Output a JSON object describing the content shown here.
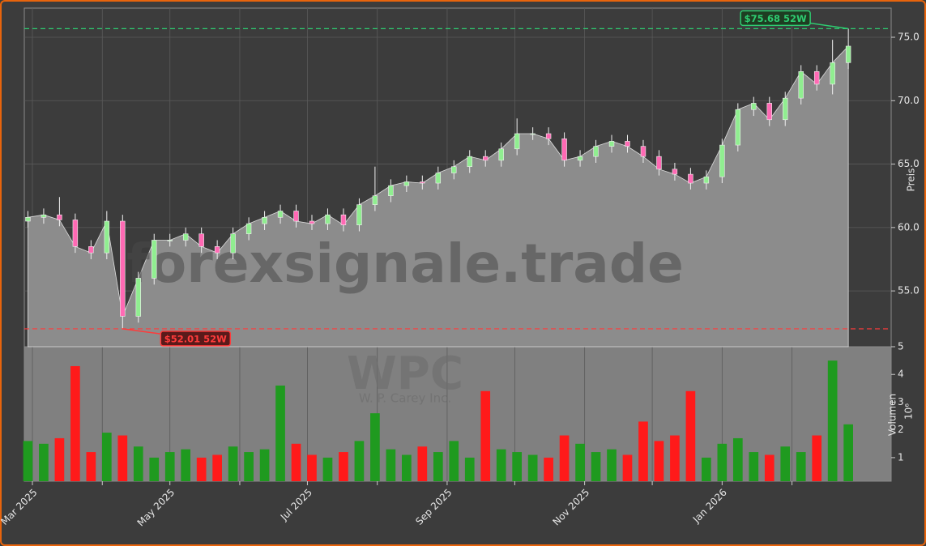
{
  "chart_data": {
    "type": "candlestick",
    "ylabel": "Preis",
    "watermark": "forexsignale.trade",
    "symbol": "WPC",
    "company": "W. P. Carey Inc.",
    "xlim": [
      -3.6,
      381
    ],
    "xticks": [
      {
        "value": 0,
        "label": "Mar 2025"
      },
      {
        "value": 61,
        "label": "May 2025"
      },
      {
        "value": 122,
        "label": "Jul 2025"
      },
      {
        "value": 184,
        "label": "Sep 2025"
      },
      {
        "value": 245,
        "label": "Nov 2025"
      },
      {
        "value": 306,
        "label": "Jan 2026"
      }
    ],
    "xminorticks": [
      31,
      92,
      153,
      214,
      275,
      337
    ],
    "ylim": [
      50.6,
      77.3
    ],
    "yticks": [
      {
        "value": 55,
        "label": "55.0"
      },
      {
        "value": 60,
        "label": "60.0"
      },
      {
        "value": 65,
        "label": "65.0"
      },
      {
        "value": 70,
        "label": "70.0"
      },
      {
        "value": 75,
        "label": "75.0"
      }
    ],
    "grid": true,
    "up_color": "#90ee90",
    "down_color": "#ff69b4",
    "area_color": "#8c8c8c",
    "x": [
      -2,
      5,
      12,
      19,
      26,
      33,
      40,
      47,
      54,
      61,
      68,
      75,
      82,
      89,
      96,
      103,
      110,
      117,
      124,
      131,
      138,
      145,
      152,
      159,
      166,
      173,
      180,
      187,
      194,
      201,
      208,
      215,
      222,
      229,
      236,
      243,
      250,
      257,
      264,
      271,
      278,
      285,
      292,
      299,
      306,
      313,
      320,
      327,
      334,
      341,
      348,
      355,
      362
    ],
    "open": [
      60.5,
      60.8,
      61.0,
      60.6,
      58.5,
      58.0,
      60.5,
      53.0,
      56.0,
      59.0,
      59.0,
      59.5,
      58.5,
      58.0,
      59.5,
      60.3,
      60.8,
      61.3,
      60.5,
      60.3,
      61.0,
      60.2,
      61.8,
      62.5,
      63.3,
      63.6,
      63.5,
      64.3,
      64.8,
      65.6,
      65.3,
      66.2,
      67.4,
      67.4,
      67.0,
      65.3,
      65.6,
      66.4,
      66.8,
      66.4,
      65.6,
      64.6,
      64.2,
      63.5,
      64.0,
      66.5,
      69.3,
      69.8,
      68.5,
      70.2,
      72.3,
      71.3,
      73.0
    ],
    "high": [
      61.3,
      61.5,
      62.4,
      61.1,
      59.0,
      61.3,
      61.0,
      56.5,
      59.5,
      59.5,
      60.0,
      60.0,
      59.0,
      60.0,
      60.8,
      61.3,
      61.8,
      61.8,
      61.0,
      61.5,
      61.5,
      62.3,
      64.8,
      63.8,
      64.1,
      64.1,
      64.8,
      65.3,
      66.1,
      66.1,
      66.7,
      68.6,
      67.9,
      67.9,
      67.5,
      66.1,
      66.9,
      67.3,
      67.3,
      66.9,
      66.1,
      65.1,
      64.7,
      64.5,
      67.0,
      69.8,
      70.3,
      70.3,
      70.7,
      72.8,
      72.8,
      74.8,
      75.68
    ],
    "low": [
      60.0,
      60.3,
      60.1,
      58.0,
      57.5,
      57.5,
      52.01,
      52.5,
      55.5,
      58.5,
      58.5,
      58.0,
      57.5,
      57.5,
      59.0,
      59.8,
      60.3,
      60.0,
      59.8,
      59.8,
      59.7,
      59.7,
      61.3,
      62.0,
      62.8,
      63.0,
      63.0,
      63.8,
      64.3,
      64.8,
      64.8,
      65.7,
      66.9,
      66.5,
      64.8,
      64.8,
      65.1,
      65.9,
      65.9,
      65.1,
      64.1,
      63.7,
      63.0,
      63.0,
      63.5,
      66.0,
      68.8,
      68.0,
      68.0,
      69.7,
      70.8,
      70.5,
      72.5
    ],
    "close": [
      60.8,
      61.0,
      60.6,
      58.5,
      58.0,
      60.5,
      53.0,
      56.0,
      59.0,
      59.0,
      59.5,
      58.5,
      58.0,
      59.5,
      60.3,
      60.8,
      61.3,
      60.5,
      60.3,
      61.0,
      60.2,
      61.8,
      62.5,
      63.3,
      63.6,
      63.5,
      64.3,
      64.8,
      65.6,
      65.3,
      66.2,
      67.4,
      67.4,
      67.0,
      65.3,
      65.6,
      66.4,
      66.8,
      66.4,
      65.6,
      64.6,
      64.2,
      63.5,
      64.0,
      66.5,
      69.3,
      69.8,
      68.5,
      70.2,
      72.3,
      71.3,
      73.0,
      74.3
    ],
    "annotations": [
      {
        "text": "$75.68 52W",
        "value": 75.68,
        "x": 362,
        "color": "#2ecc71"
      },
      {
        "text": "$52.01 52W",
        "value": 52.01,
        "x": 40,
        "color": "#ff3b3b"
      }
    ],
    "volume": {
      "ylabel": "Volumen",
      "offset_text": "10⁶",
      "ylim": [
        0.15,
        5
      ],
      "yticks": [
        1,
        2,
        3,
        4,
        5
      ],
      "up_color": "#1f9a1f",
      "down_color": "#ff1a1a",
      "values": [
        1.6,
        1.5,
        1.7,
        4.3,
        1.2,
        1.9,
        1.8,
        1.4,
        1.0,
        1.2,
        1.3,
        1.0,
        1.1,
        1.4,
        1.2,
        1.3,
        3.6,
        1.5,
        1.1,
        1.0,
        1.2,
        1.6,
        2.6,
        1.3,
        1.1,
        1.4,
        1.2,
        1.6,
        1.0,
        3.4,
        1.3,
        1.2,
        1.1,
        1.0,
        1.8,
        1.5,
        1.2,
        1.3,
        1.1,
        2.3,
        1.6,
        1.8,
        3.4,
        1.0,
        1.5,
        1.7,
        1.2,
        1.1,
        1.4,
        1.2,
        1.8,
        4.5,
        2.2
      ]
    }
  }
}
